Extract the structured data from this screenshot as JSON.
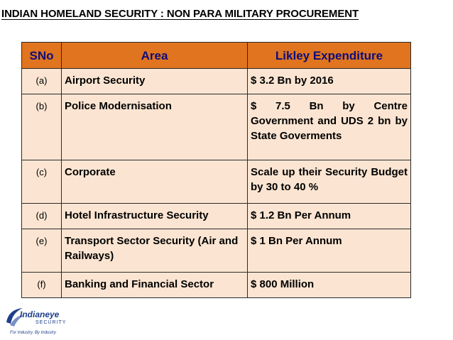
{
  "title": "INDIAN HOMELAND SECURITY : NON PARA MILITARY PROCUREMENT",
  "table": {
    "headers": [
      "SNo",
      "Area",
      "Likley Expenditure"
    ],
    "rows": [
      {
        "sno": "(a)",
        "area": "Airport Security",
        "expenditure": "$ 3.2 Bn by 2016"
      },
      {
        "sno": "(b)",
        "area": "Police Modernisation",
        "expenditure": "$ 7.5 Bn by Centre Government and UDS 2 bn by State Goverments"
      },
      {
        "sno": "(c)",
        "area": "Corporate",
        "expenditure": "Scale up their Security Budget by 30 to 40 %"
      },
      {
        "sno": "(d)",
        "area": "Hotel Infrastructure Security",
        "expenditure": "$ 1.2 Bn Per Annum"
      },
      {
        "sno": "(e)",
        "area": "Transport Sector Security (Air and Railways)",
        "expenditure": "$ 1 Bn Per Annum"
      },
      {
        "sno": "(f)",
        "area": "Banking and Financial Sector",
        "expenditure": "$ 800 Million"
      }
    ]
  },
  "logo": {
    "name": "Indianeye",
    "sub": "SECURITY",
    "tagline": "For Industry. By Industry"
  },
  "colors": {
    "header_bg": "#e0741f",
    "header_text": "#0d0d7a",
    "row_bg": "#fbe5d2",
    "logo": "#1e3f8a"
  }
}
